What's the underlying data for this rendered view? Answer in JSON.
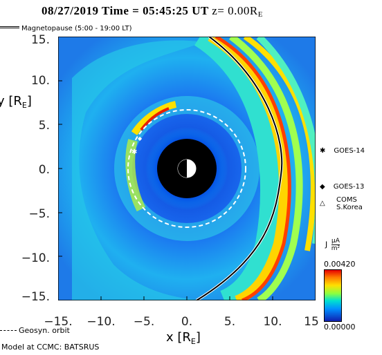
{
  "header": {
    "date": "08/27/2019",
    "time_label": "Time =",
    "time": "05:45:25 UT",
    "z_label": "z= 0.00R",
    "z_sub": "E"
  },
  "legend": {
    "magnetopause": "Magnetopause (5:00 - 19:00 LT)",
    "geosyn": "Geosyn. orbit"
  },
  "axes": {
    "y_label": "y [R",
    "x_label": "x [R",
    "unit_sub": "E",
    "y_ticks": [
      "15.",
      "10.",
      "5.",
      "0.",
      "−5.",
      "−10.",
      "−15."
    ],
    "x_ticks": [
      "−15.",
      "−10.",
      "−5.",
      "0.",
      "5.",
      "10.",
      "15"
    ]
  },
  "satellites": [
    {
      "symbol": "✱",
      "name": "GOES-14",
      "icon": "asterisk-icon"
    },
    {
      "symbol": "◆",
      "name": "GOES-13",
      "icon": "diamond-icon"
    },
    {
      "symbol": "△",
      "name": "COMS",
      "name2": "S.Korea",
      "icon": "triangle-icon"
    }
  ],
  "colorbar": {
    "title": "J",
    "unit_num": "μA",
    "unit_den": "m²",
    "max": "0.00420",
    "min": "0.00000"
  },
  "footer": {
    "model": "Model at CCMC: BATSRUS"
  }
}
